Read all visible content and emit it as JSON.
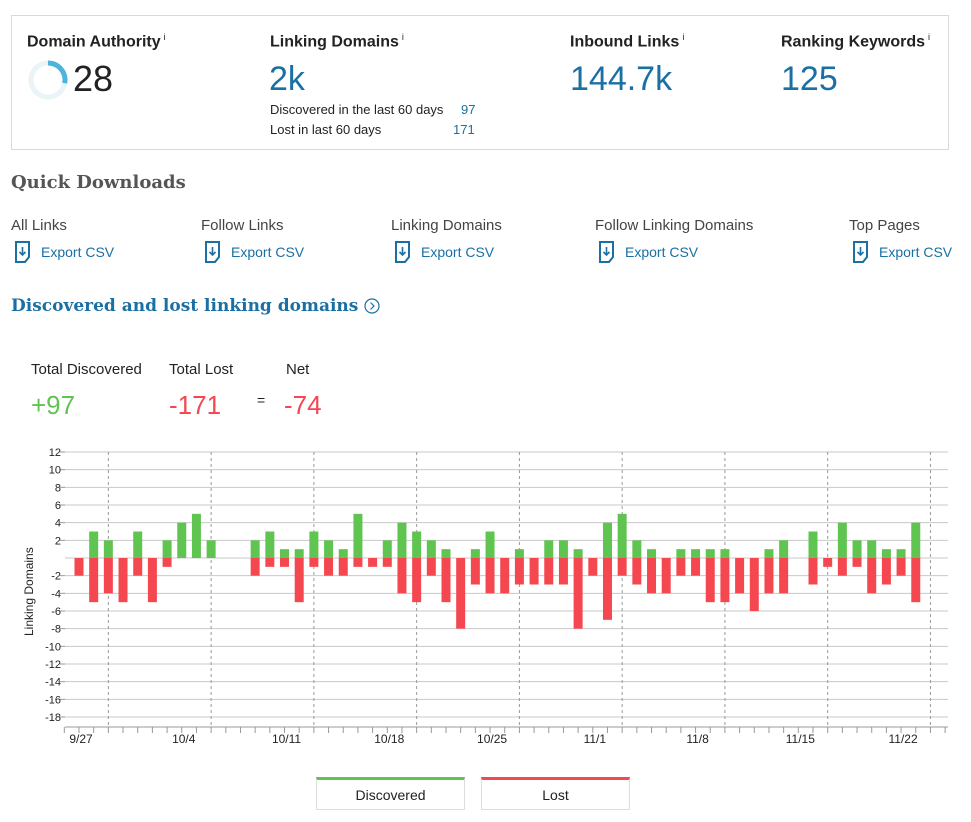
{
  "kpis": {
    "domain_authority": {
      "label": "Domain Authority",
      "info": "i",
      "value": "28",
      "gauge_fraction": 0.28
    },
    "linking_domains": {
      "label": "Linking Domains",
      "info": "i",
      "value": "2k",
      "discovered_label": "Discovered in the last 60 days",
      "discovered_value": "97",
      "lost_label": "Lost in last 60 days",
      "lost_value": "171"
    },
    "inbound_links": {
      "label": "Inbound Links",
      "info": "i",
      "value": "144.7k"
    },
    "ranking_keywords": {
      "label": "Ranking Keywords",
      "info": "i",
      "value": "125"
    }
  },
  "quick_downloads": {
    "title": "Quick Downloads",
    "items": [
      {
        "label": "All Links",
        "link": "Export CSV"
      },
      {
        "label": "Follow Links",
        "link": "Export CSV"
      },
      {
        "label": "Linking Domains",
        "link": "Export CSV"
      },
      {
        "label": "Follow Linking Domains",
        "link": "Export CSV"
      },
      {
        "label": "Top Pages",
        "link": "Export CSV"
      }
    ]
  },
  "section": {
    "title": "Discovered and lost linking domains",
    "total_discovered_label": "Total Discovered",
    "total_discovered": "+97",
    "total_lost_label": "Total Lost",
    "total_lost": "-171",
    "equals": "=",
    "net_label": "Net",
    "net": "-74"
  },
  "colors": {
    "discovered": "#5fc450",
    "lost": "#f5474f",
    "accent": "#1a6fa3"
  },
  "chart_data": {
    "type": "bar",
    "ylabel": "Linking Domains",
    "ylim": [
      -18,
      12
    ],
    "yticks": [
      12,
      10,
      8,
      6,
      4,
      2,
      -2,
      -4,
      -6,
      -8,
      -10,
      -12,
      -14,
      -16,
      -18
    ],
    "xtick_labels": [
      "9/27",
      "10/4",
      "10/11",
      "10/18",
      "10/25",
      "11/1",
      "11/8",
      "11/15",
      "11/22"
    ],
    "start_date": "9/27",
    "series": [
      {
        "name": "Discovered",
        "values": [
          0,
          3,
          2,
          0,
          3,
          0,
          2,
          4,
          5,
          2,
          0,
          0,
          2,
          3,
          1,
          1,
          3,
          2,
          1,
          5,
          0,
          2,
          4,
          3,
          2,
          1,
          0,
          1,
          3,
          0,
          1,
          0,
          2,
          2,
          1,
          0,
          4,
          5,
          2,
          1,
          0,
          1,
          1,
          1,
          1,
          0,
          0,
          1,
          2,
          0,
          3,
          0,
          4,
          2,
          2,
          1,
          1,
          4
        ]
      },
      {
        "name": "Lost",
        "values": [
          -2,
          -5,
          -4,
          -5,
          -2,
          -5,
          -1,
          0,
          0,
          0,
          0,
          0,
          -2,
          -1,
          -1,
          -5,
          -1,
          -2,
          -2,
          -1,
          -1,
          -1,
          -4,
          -5,
          -2,
          -5,
          -8,
          -3,
          -4,
          -4,
          -3,
          -3,
          -3,
          -3,
          -8,
          -2,
          -7,
          -2,
          -3,
          -4,
          -4,
          -2,
          -2,
          -5,
          -5,
          -4,
          -6,
          -4,
          -4,
          0,
          -3,
          -1,
          -2,
          -1,
          -4,
          -3,
          -2,
          -5
        ]
      }
    ],
    "legend": [
      "Discovered",
      "Lost"
    ],
    "legend_position": "bottom"
  }
}
